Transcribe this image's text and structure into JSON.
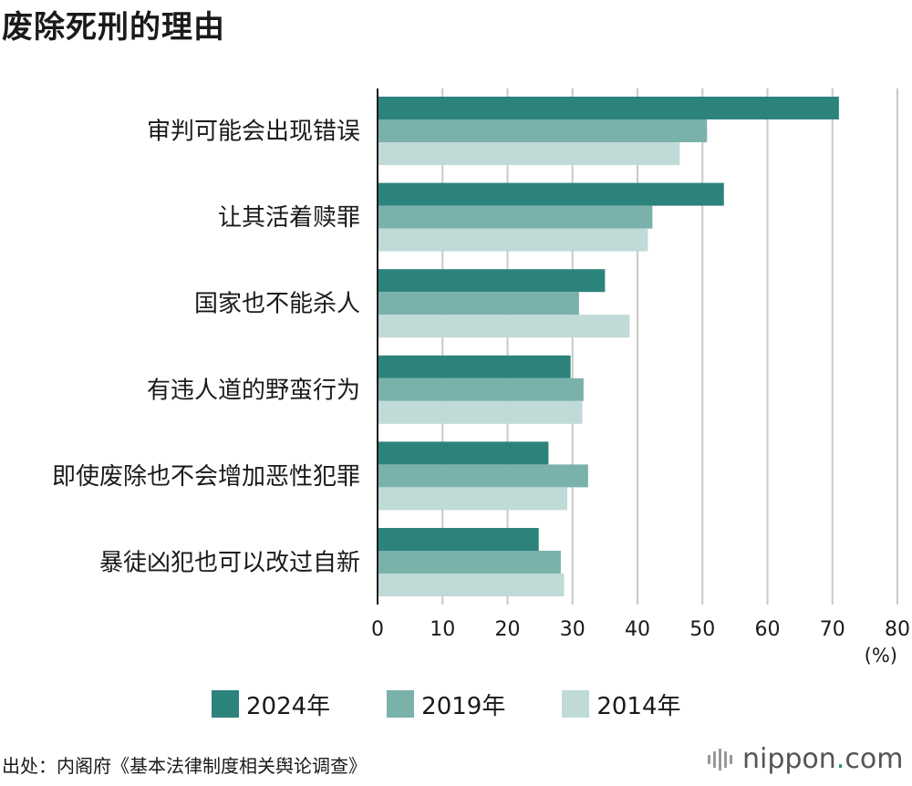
{
  "title": "废除死刑的理由",
  "unit": "(%)",
  "source": "出处：内阁府《基本法律制度相关舆论调查》",
  "logo": {
    "name": "nippon",
    "dot": ".",
    "suffix": "com"
  },
  "colors": {
    "s2024": "#2b837c",
    "s2019": "#7ab1ab",
    "s2014": "#c0dad7"
  },
  "chart_data": {
    "type": "bar",
    "orientation": "horizontal",
    "title": "废除死刑的理由",
    "categories": [
      "审判可能会出现错误",
      "让其活着赎罪",
      "国家也不能杀人",
      "有违人道的野蛮行为",
      "即使废除也不会增加恶性犯罪",
      "暴徒凶犯也可以改过自新"
    ],
    "series": [
      {
        "name": "2024年",
        "color": "#2b837c",
        "values": [
          71.0,
          53.3,
          35.0,
          29.7,
          26.3,
          24.8
        ]
      },
      {
        "name": "2019年",
        "color": "#7ab1ab",
        "values": [
          50.7,
          42.3,
          31.0,
          31.7,
          32.4,
          28.2
        ]
      },
      {
        "name": "2014年",
        "color": "#c0dad7",
        "values": [
          46.5,
          41.6,
          38.8,
          31.5,
          29.2,
          28.7
        ]
      }
    ],
    "xlim": [
      0,
      80
    ],
    "xticks": [
      0,
      10,
      20,
      30,
      40,
      50,
      60,
      70,
      80
    ],
    "xlabel": "(%)",
    "grid": true,
    "legend": "bottom"
  }
}
